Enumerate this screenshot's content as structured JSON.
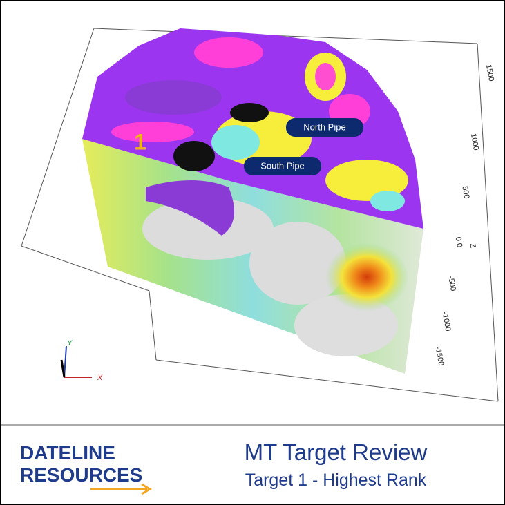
{
  "scene": {
    "labels": {
      "target": "1",
      "north_pipe": "North Pipe",
      "south_pipe": "South Pipe"
    },
    "z_axis": {
      "title": "Z",
      "ticks": [
        "1500",
        "1000",
        "500",
        "0.0",
        "-500",
        "-1000",
        "-1500"
      ]
    },
    "triad": {
      "x": "X",
      "y": "Y"
    }
  },
  "footer": {
    "logo": [
      "DATELINE",
      "RESOURCES"
    ],
    "title": "MT Target Review",
    "subtitle": "Target 1 - Highest Rank"
  }
}
